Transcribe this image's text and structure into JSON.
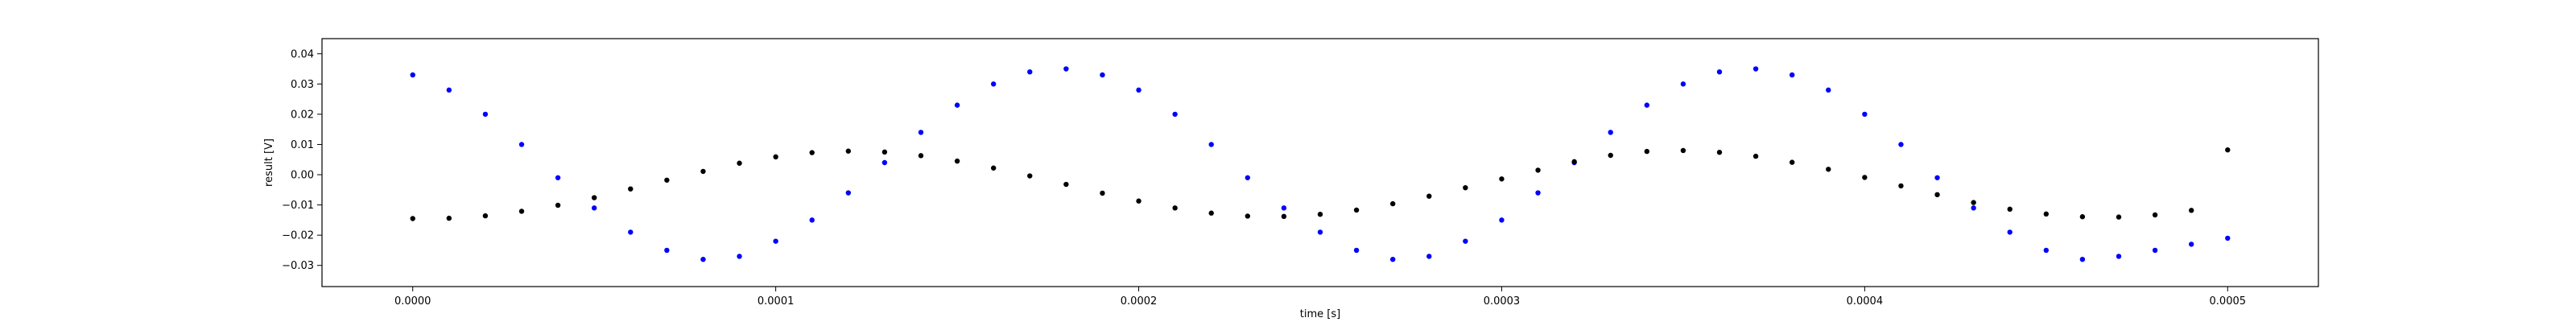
{
  "chart_data": {
    "type": "scatter",
    "xlabel": "time [s]",
    "ylabel": "result [V]",
    "xlim": [
      -2.5e-05,
      0.000525
    ],
    "ylim": [
      -0.037,
      0.045
    ],
    "grid": false,
    "x_ticks": [
      {
        "value": 0.0,
        "label": "0.0000"
      },
      {
        "value": 0.0001,
        "label": "0.0001"
      },
      {
        "value": 0.0002,
        "label": "0.0002"
      },
      {
        "value": 0.0003,
        "label": "0.0003"
      },
      {
        "value": 0.0004,
        "label": "0.0004"
      },
      {
        "value": 0.0005,
        "label": "0.0005"
      }
    ],
    "y_ticks": [
      {
        "value": -0.03,
        "label": "−0.03"
      },
      {
        "value": -0.02,
        "label": "−0.02"
      },
      {
        "value": -0.01,
        "label": "−0.01"
      },
      {
        "value": 0.0,
        "label": "0.00"
      },
      {
        "value": 0.01,
        "label": "0.01"
      },
      {
        "value": 0.02,
        "label": "0.02"
      },
      {
        "value": 0.03,
        "label": "0.03"
      },
      {
        "value": 0.04,
        "label": "0.04"
      }
    ],
    "series": [
      {
        "color": "#0000ff",
        "marker": "dot",
        "x": [
          0.0,
          1e-05,
          2e-05,
          3e-05,
          4e-05,
          5e-05,
          6e-05,
          7e-05,
          8e-05,
          9e-05,
          0.0001,
          0.00011,
          0.00012,
          0.00013,
          0.00014,
          0.00015,
          0.00016,
          0.00017,
          0.00018,
          0.00019,
          0.0002,
          0.00021,
          0.00022,
          0.00023,
          0.00024,
          0.00025,
          0.00026,
          0.00027,
          0.00028,
          0.00029,
          0.0003,
          0.00031,
          0.00032,
          0.00033,
          0.00034,
          0.00035,
          0.00036,
          0.00037,
          0.00038,
          0.00039,
          0.0004,
          0.00041,
          0.00042,
          0.00043,
          0.00044,
          0.00045,
          0.00046,
          0.00047,
          0.00048,
          0.00049,
          0.0005
        ],
        "y": [
          0.033,
          0.028,
          0.02,
          0.01,
          -0.001,
          -0.011,
          -0.019,
          -0.025,
          -0.028,
          -0.027,
          -0.022,
          -0.015,
          -0.006,
          0.004,
          0.014,
          0.023,
          0.03,
          0.034,
          0.035,
          0.033,
          0.028,
          0.02,
          0.01,
          -0.001,
          -0.011,
          -0.019,
          -0.025,
          -0.028,
          -0.027,
          -0.022,
          -0.015,
          -0.006,
          0.004,
          0.014,
          0.023,
          0.03,
          0.034,
          0.035,
          0.033,
          0.028,
          0.02,
          0.01,
          -0.001,
          -0.011,
          -0.019,
          -0.025,
          -0.028,
          -0.027,
          -0.025,
          -0.023,
          -0.021
        ]
      },
      {
        "color": "#000000",
        "marker": "dot",
        "x": [
          0.0,
          1e-05,
          2e-05,
          3e-05,
          4e-05,
          5e-05,
          6e-05,
          7e-05,
          8e-05,
          9e-05,
          0.0001,
          0.00011,
          0.00012,
          0.00013,
          0.00014,
          0.00015,
          0.00016,
          0.00017,
          0.00018,
          0.00019,
          0.0002,
          0.00021,
          0.00022,
          0.00023,
          0.00024,
          0.00025,
          0.00026,
          0.00027,
          0.00028,
          0.00029,
          0.0003,
          0.00031,
          0.00032,
          0.00033,
          0.00034,
          0.00035,
          0.00036,
          0.00037,
          0.00038,
          0.00039,
          0.0004,
          0.00041,
          0.00042,
          0.00043,
          0.00044,
          0.00045,
          0.00046,
          0.00047,
          0.00048,
          0.00049,
          0.0005
        ],
        "y": [
          -0.0145,
          -0.0144,
          -0.0136,
          -0.0121,
          -0.0101,
          -0.0076,
          -0.0047,
          -0.0018,
          0.0011,
          0.0038,
          0.0059,
          0.0073,
          0.0078,
          0.0075,
          0.0063,
          0.0045,
          0.0022,
          -0.0004,
          -0.0032,
          -0.0061,
          -0.0087,
          -0.011,
          -0.0127,
          -0.0137,
          -0.0138,
          -0.0131,
          -0.0117,
          -0.0096,
          -0.0071,
          -0.0043,
          -0.0014,
          0.0015,
          0.0043,
          0.0064,
          0.0077,
          0.008,
          0.0074,
          0.0061,
          0.0041,
          0.0018,
          -0.0009,
          -0.0037,
          -0.0066,
          -0.0092,
          -0.0114,
          -0.013,
          -0.0139,
          -0.014,
          -0.0133,
          -0.0118,
          0.0082
        ]
      }
    ]
  }
}
